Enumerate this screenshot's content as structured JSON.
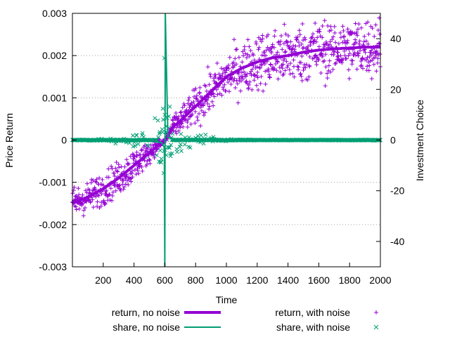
{
  "chart_data": {
    "type": "scatter",
    "xlabel": "Time",
    "ylabel": "Price Return",
    "y2label": "Investment Choice",
    "xlim": [
      0,
      2000
    ],
    "ylim": [
      -0.003,
      0.003
    ],
    "y2lim": [
      -50,
      50
    ],
    "xticks": [
      200,
      400,
      600,
      800,
      1000,
      1200,
      1400,
      1600,
      1800,
      2000
    ],
    "yticks": [
      -0.003,
      -0.002,
      -0.001,
      0,
      0.001,
      0.002,
      0.003
    ],
    "ytick_labels": [
      "-0.003",
      "-0.002",
      "-0.001",
      "0",
      "0.001",
      "0.002",
      "0.003"
    ],
    "y2ticks": [
      -40,
      -20,
      0,
      20,
      40
    ],
    "grid": "horizontal dotted at left-axis ticks",
    "legend_position": "bottom",
    "colors": {
      "return": "#9400D3",
      "share": "#009E73"
    },
    "series": [
      {
        "name": "return, no noise",
        "axis": "y",
        "style": "thick line",
        "x": [
          0,
          100,
          200,
          300,
          400,
          500,
          550,
          600,
          650,
          700,
          800,
          900,
          1000,
          1100,
          1200,
          1300,
          1400,
          1500,
          1600,
          1700,
          1800,
          1900,
          2000
        ],
        "values": [
          -0.0015,
          -0.00135,
          -0.00115,
          -0.0009,
          -0.0006,
          -0.0003,
          -0.00015,
          -2e-05,
          0.0003,
          0.00045,
          0.0008,
          0.00115,
          0.0015,
          0.0017,
          0.00185,
          0.00195,
          0.002,
          0.00208,
          0.00213,
          0.00216,
          0.00218,
          0.0022,
          0.0022
        ]
      },
      {
        "name": "share, no noise",
        "axis": "y2",
        "style": "line",
        "x": [
          0,
          500,
          580,
          597,
          600,
          603,
          620,
          700,
          2000
        ],
        "values": [
          0,
          -0.3,
          -1.0,
          -3,
          -50,
          50,
          1.0,
          0.2,
          0
        ]
      },
      {
        "name": "return, with noise",
        "axis": "y",
        "style": "plus markers",
        "pattern": "scatter around 'return, no noise'; noise grows from about 0.0005 at t=0 to about 0.0009 at t=2000, near 0 around t=600",
        "x_range": [
          0,
          2000
        ]
      },
      {
        "name": "share, with noise",
        "axis": "y2",
        "style": "x markers",
        "pattern": "near 0 away from t=600; strong spread up to about ±30 close to t=600",
        "x_range": [
          0,
          2000
        ]
      }
    ]
  }
}
